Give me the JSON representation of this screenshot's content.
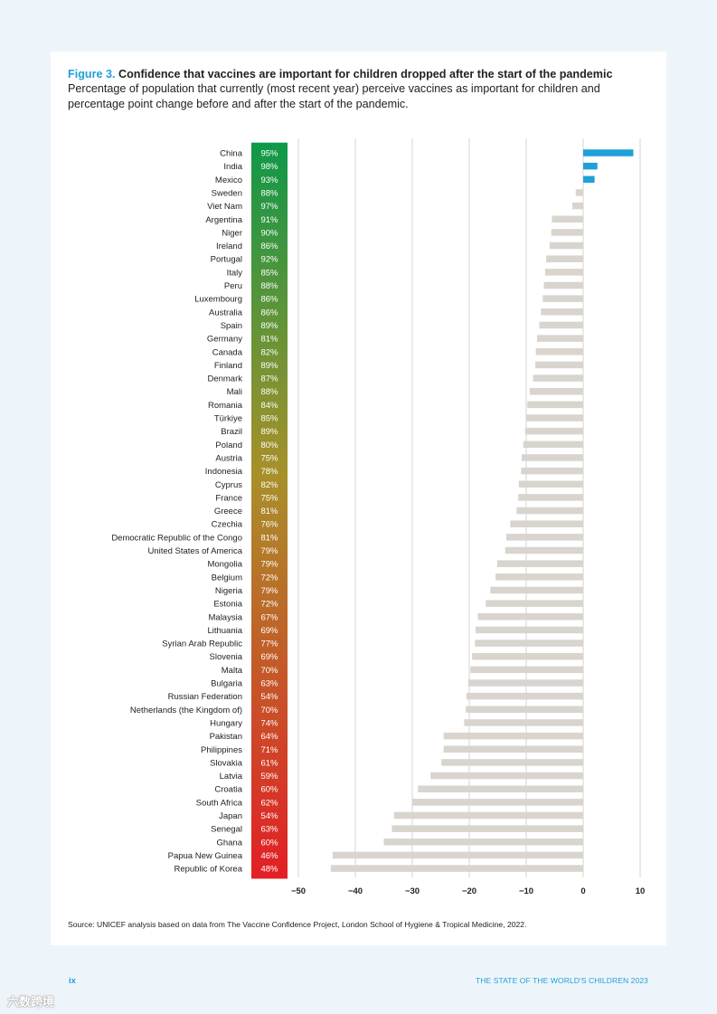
{
  "figure": {
    "label": "Figure 3.",
    "title": "Confidence that vaccines are important for children dropped after the start of the pandemic",
    "subtitle": "Percentage of population that currently (most recent year) perceive vaccines as important for children and percentage point change before and after the start of the pandemic.",
    "source": "Source: UNICEF analysis based on data from The Vaccine Confidence Project, London School of Hygiene & Tropical Medicine, 2022."
  },
  "footer": {
    "page": "ix",
    "publication": "THE STATE OF THE WORLD'S CHILDREN 2023",
    "watermark": "六数跨境"
  },
  "colors": {
    "positive_bar": "#1ea0d8",
    "negative_bar": "#d9d4ce",
    "gradient_top": "#0e9848",
    "gradient_mid": "#a8902a",
    "gradient_bottom": "#e21f26",
    "accent": "#1ea0d8"
  },
  "chart_data": {
    "type": "bar",
    "orientation": "horizontal",
    "categories": [
      "China",
      "India",
      "Mexico",
      "Sweden",
      "Viet Nam",
      "Argentina",
      "Niger",
      "Ireland",
      "Portugal",
      "Italy",
      "Peru",
      "Luxembourg",
      "Australia",
      "Spain",
      "Germany",
      "Canada",
      "Finland",
      "Denmark",
      "Mali",
      "Romania",
      "Türkiye",
      "Brazil",
      "Poland",
      "Austria",
      "Indonesia",
      "Cyprus",
      "France",
      "Greece",
      "Czechia",
      "Democratic Republic of the Congo",
      "United States of America",
      "Mongolia",
      "Belgium",
      "Nigeria",
      "Estonia",
      "Malaysia",
      "Lithuania",
      "Syrian Arab Republic",
      "Slovenia",
      "Malta",
      "Bulgaria",
      "Russian Federation",
      "Netherlands (the Kingdom of)",
      "Hungary",
      "Pakistan",
      "Philippines",
      "Slovakia",
      "Latvia",
      "Croatia",
      "South Africa",
      "Japan",
      "Senegal",
      "Ghana",
      "Papua New Guinea",
      "Republic of Korea"
    ],
    "current_confidence_labels": [
      "95%",
      "98%",
      "93%",
      "88%",
      "97%",
      "91%",
      "90%",
      "86%",
      "92%",
      "85%",
      "88%",
      "86%",
      "86%",
      "89%",
      "81%",
      "82%",
      "89%",
      "87%",
      "88%",
      "84%",
      "85%",
      "89%",
      "80%",
      "75%",
      "78%",
      "82%",
      "75%",
      "81%",
      "76%",
      "81%",
      "79%",
      "79%",
      "72%",
      "79%",
      "72%",
      "67%",
      "69%",
      "77%",
      "69%",
      "70%",
      "63%",
      "54%",
      "70%",
      "74%",
      "64%",
      "71%",
      "61%",
      "59%",
      "60%",
      "62%",
      "54%",
      "63%",
      "60%",
      "46%",
      "48%"
    ],
    "series": [
      {
        "values": [
          8.8,
          2.5,
          2.0,
          -1.3,
          -1.9,
          -5.5,
          -5.6,
          -5.9,
          -6.5,
          -6.7,
          -6.9,
          -7.1,
          -7.4,
          -7.7,
          -8.1,
          -8.3,
          -8.4,
          -8.8,
          -9.4,
          -9.8,
          -10.0,
          -10.2,
          -10.5,
          -10.8,
          -10.9,
          -11.3,
          -11.4,
          -11.7,
          -12.8,
          -13.5,
          -13.7,
          -15.1,
          -15.4,
          -16.3,
          -17.1,
          -18.5,
          -18.9,
          -19.0,
          -19.5,
          -19.8,
          -20.2,
          -20.5,
          -20.6,
          -20.9,
          -24.5,
          -24.5,
          -24.9,
          -26.8,
          -29.0,
          -30.0,
          -33.2,
          -33.6,
          -35.0,
          -44.0,
          -44.3
        ]
      }
    ],
    "x_ticks": [
      "−50",
      "−40",
      "−30",
      "−20",
      "−10",
      "0",
      "10"
    ],
    "x_tick_values": [
      -50,
      -40,
      -30,
      -20,
      -10,
      0,
      10
    ],
    "xlim": [
      -50,
      10
    ],
    "xlabel": "",
    "ylabel": "",
    "grid": true,
    "legend": "none"
  }
}
